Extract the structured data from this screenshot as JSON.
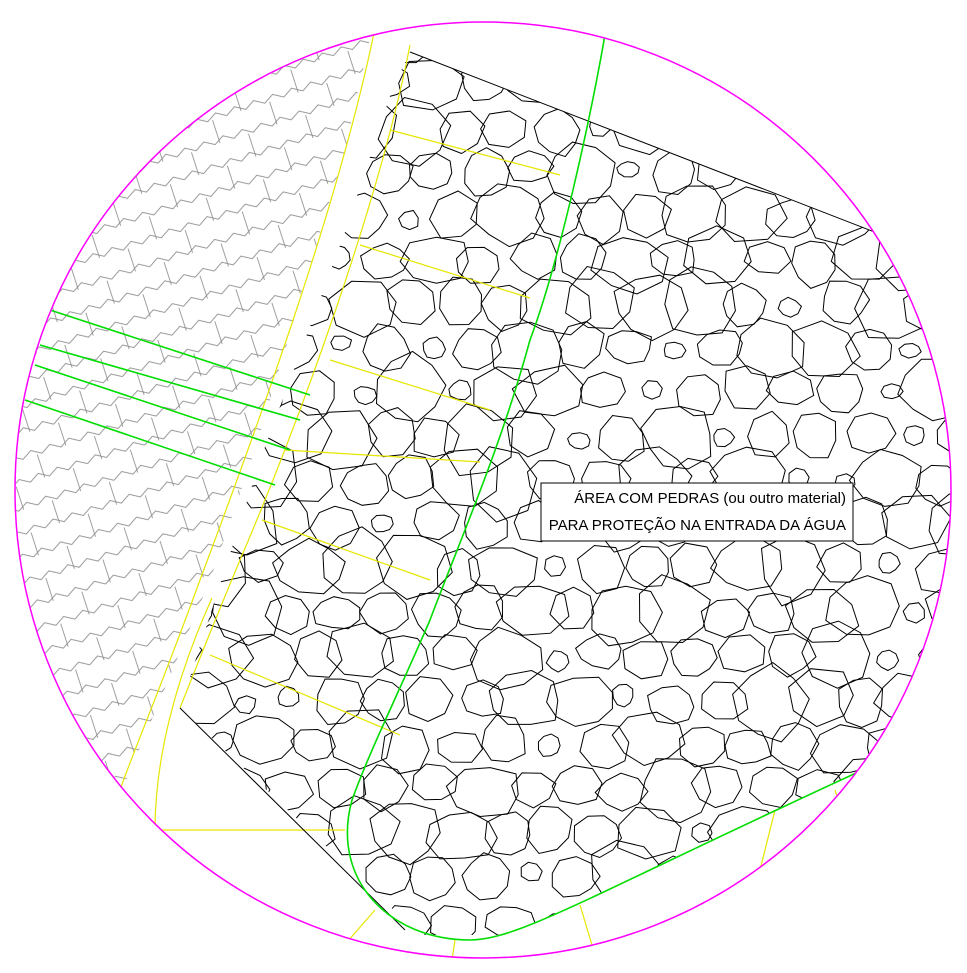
{
  "label": {
    "lines": [
      "ÁREA COM PEDRAS (ou outro material)",
      "PARA PROTEÇÃO NA ENTRADA DA ÁGUA"
    ]
  }
}
